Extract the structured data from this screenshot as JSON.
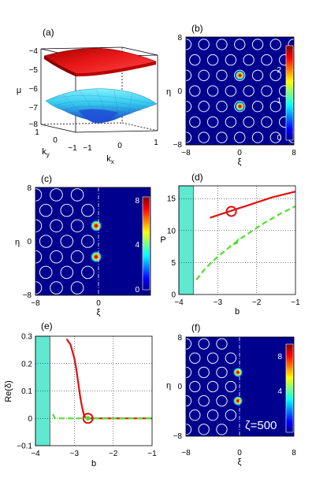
{
  "chart_data": [
    {
      "panel_label": "(a)",
      "type": "surface",
      "xlabel": "k_x",
      "ylabel": "k_y",
      "zlabel": "μ",
      "xticks": [
        "−1",
        "0",
        "1"
      ],
      "yticks": [
        "1",
        "0",
        "−1"
      ],
      "zticks": [
        "−4",
        "−5",
        "−6",
        "−7",
        "−8"
      ],
      "zlim": [
        -8,
        -4
      ],
      "series": [
        {
          "name": "",
          "color": "#d01010",
          "approx_level": -4.3
        },
        {
          "name": "",
          "color": "#40d0f0",
          "approx_level_range": [
            -7.0,
            -7.9
          ]
        }
      ]
    },
    {
      "panel_label": "(b)",
      "type": "heatmap",
      "xlabel": "ξ",
      "ylabel": "η",
      "xticks": [
        "−8",
        "0",
        "8"
      ],
      "yticks": [
        "8",
        "0",
        "−8"
      ],
      "xlim": [
        -8,
        8
      ],
      "ylim": [
        -8,
        8
      ],
      "colorbar_ticks": [
        "0",
        "1",
        "2"
      ],
      "colorbar_range": [
        0,
        2.4
      ],
      "peaks": [
        {
          "x": 0,
          "y": 2.3
        },
        {
          "x": 0,
          "y": -2.3
        }
      ],
      "lattice_rows_y": [
        6.9,
        4.6,
        2.3,
        0,
        -2.3,
        -4.6,
        -6.9
      ],
      "lattice_spacing_x": 2.66
    },
    {
      "panel_label": "(c)",
      "type": "heatmap",
      "xlabel": "ξ",
      "ylabel": "η",
      "xticks": [
        "−8",
        "0"
      ],
      "yticks": [
        "8",
        "0",
        "−8"
      ],
      "xlim": [
        -8,
        8
      ],
      "ylim": [
        -8,
        8
      ],
      "colorbar_ticks": [
        "0",
        "4",
        "8"
      ],
      "colorbar_range": [
        0,
        8.5
      ],
      "peaks": [
        {
          "x": -0.3,
          "y": 2.3
        },
        {
          "x": -0.3,
          "y": -2.3
        }
      ],
      "surface_x": 0
    },
    {
      "panel_label": "(d)",
      "type": "line",
      "xlabel": "b",
      "ylabel": "P",
      "xlim": [
        -4,
        -1
      ],
      "ylim": [
        0,
        17
      ],
      "xticks": [
        "−4",
        "−3",
        "−2",
        "−1"
      ],
      "yticks": [
        "0",
        "5",
        "10",
        "15"
      ],
      "band_gap": [
        -4,
        -3.63
      ],
      "series": [
        {
          "name": "",
          "color": "#e01010",
          "style": "solid",
          "x": [
            -3.2,
            -3.0,
            -2.8,
            -2.6,
            -2.4,
            -2.2,
            -2.0,
            -1.8,
            -1.6,
            -1.4,
            -1.2,
            -1.0
          ],
          "y": [
            12.0,
            12.4,
            12.8,
            13.2,
            13.6,
            14.0,
            14.4,
            14.8,
            15.2,
            15.5,
            15.8,
            16.1
          ]
        },
        {
          "name": "",
          "color": "#50e030",
          "style": "dashed",
          "x": [
            -3.55,
            -3.4,
            -3.2,
            -3.0,
            -2.8,
            -2.6,
            -2.4,
            -2.2,
            -2.0,
            -1.8,
            -1.6,
            -1.4,
            -1.2,
            -1.0
          ],
          "y": [
            2.3,
            3.5,
            4.8,
            5.9,
            6.9,
            7.9,
            8.8,
            9.6,
            10.4,
            11.2,
            11.9,
            12.6,
            13.2,
            13.8
          ]
        }
      ],
      "marker": {
        "x": -2.65,
        "y": 13.0,
        "color": "#e01010"
      }
    },
    {
      "panel_label": "(e)",
      "type": "line",
      "xlabel": "b",
      "ylabel": "Re(δ)",
      "xlim": [
        -4,
        -1
      ],
      "ylim": [
        -0.1,
        0.3
      ],
      "xticks": [
        "−4",
        "−3",
        "−2",
        "−1"
      ],
      "yticks": [
        "−0.1",
        "0",
        "0.1",
        "0.2",
        "0.3"
      ],
      "band_gap": [
        -4,
        -3.63
      ],
      "series": [
        {
          "name": "",
          "color": "#e01010",
          "style": "solid",
          "x": [
            -3.2,
            -3.1,
            -3.0,
            -2.95,
            -2.9,
            -2.85,
            -2.8,
            -2.75,
            -2.7,
            -2.6,
            -2.4,
            -2.0,
            -1.5,
            -1.0
          ],
          "y": [
            0.29,
            0.27,
            0.22,
            0.18,
            0.13,
            0.08,
            0.04,
            0.01,
            0.0,
            0.0,
            0.0,
            0.0,
            0.0,
            0.0
          ]
        },
        {
          "name": "",
          "color": "#50e030",
          "style": "dashed",
          "x": [
            -3.55,
            -3.52,
            -3.5,
            -3.3,
            -3.0,
            -2.5,
            -2.0,
            -1.5,
            -1.0
          ],
          "y": [
            0.015,
            0.005,
            0.0,
            0.0,
            0.0,
            0.0,
            0.0,
            0.0,
            0.0
          ]
        }
      ],
      "marker": {
        "x": -2.65,
        "y": 0.0,
        "color": "#e01010"
      }
    },
    {
      "panel_label": "(f)",
      "type": "heatmap",
      "xlabel": "ξ",
      "ylabel": "η",
      "xticks": [
        "−8",
        "0",
        "8"
      ],
      "yticks": [
        "8",
        "0",
        "−8"
      ],
      "xlim": [
        -8,
        8
      ],
      "ylim": [
        -8,
        8
      ],
      "colorbar_ticks": [
        "4",
        "8"
      ],
      "colorbar_range": [
        0,
        9.5
      ],
      "peaks": [
        {
          "x": -0.3,
          "y": 2.3
        },
        {
          "x": -0.3,
          "y": -2.3
        }
      ],
      "surface_x": 0,
      "annotation": "ζ=500"
    }
  ]
}
